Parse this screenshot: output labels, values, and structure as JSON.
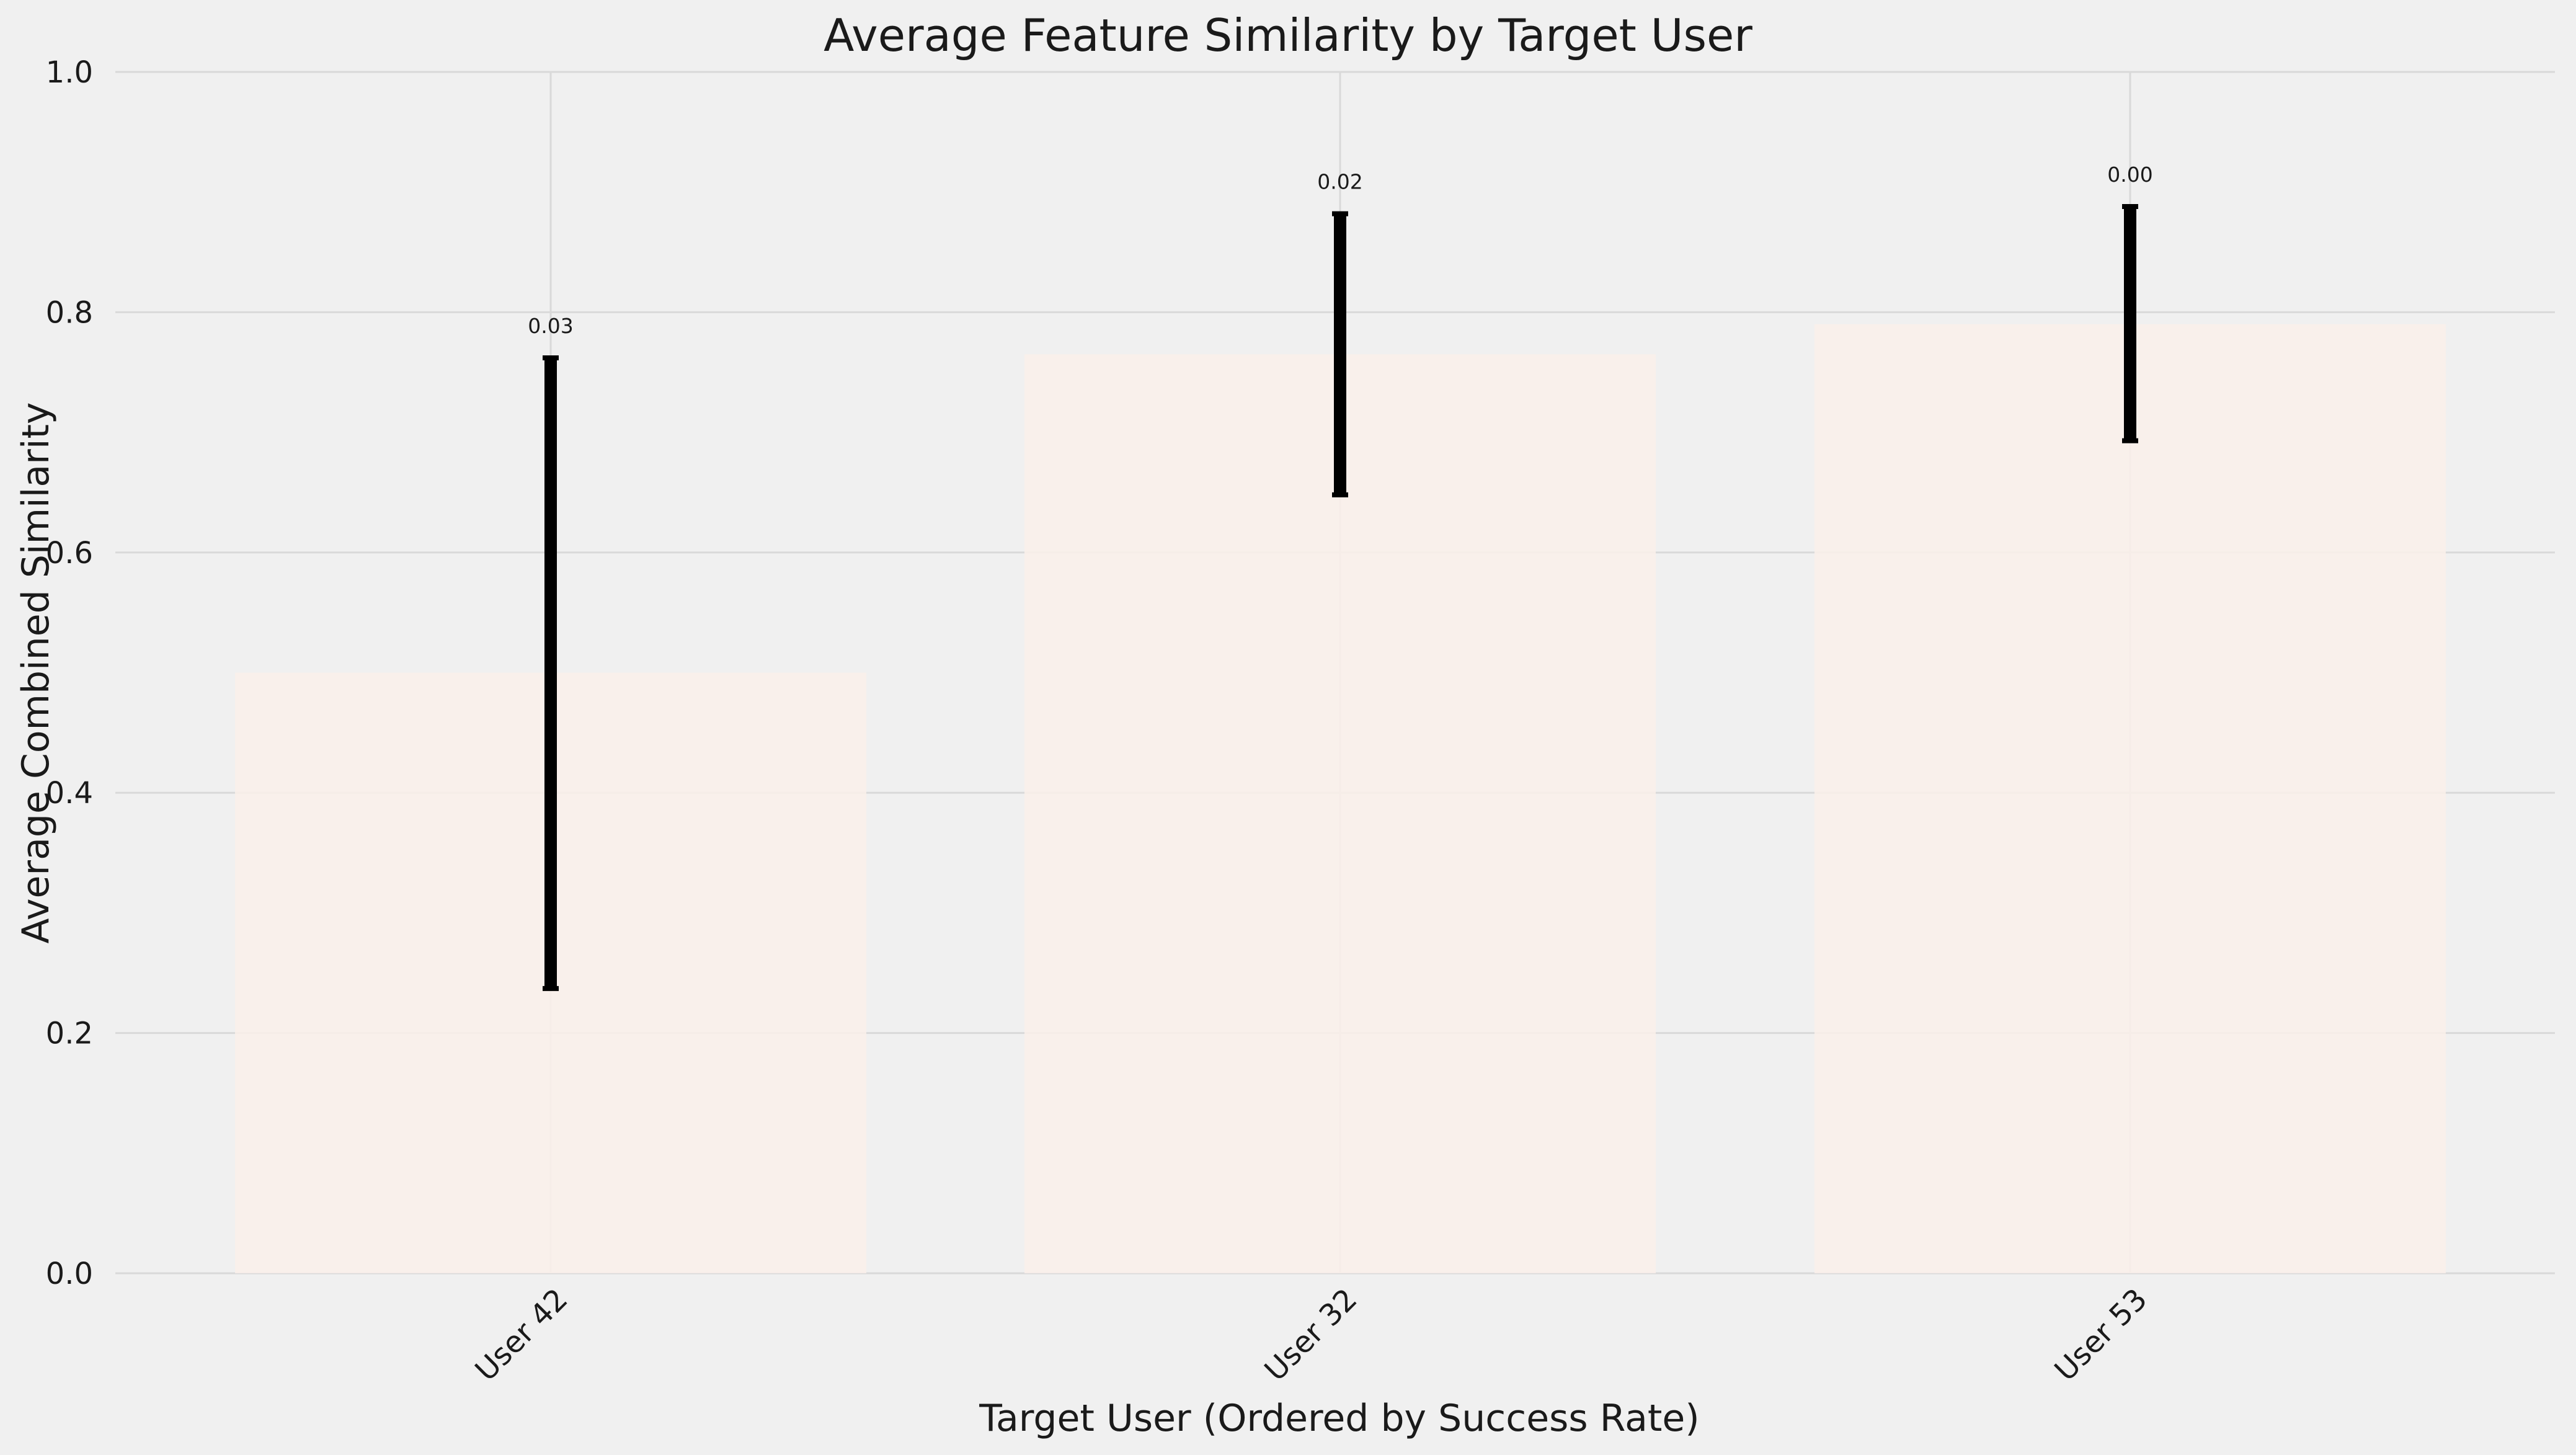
{
  "chart_data": {
    "type": "bar",
    "title": "Average Feature Similarity by Target User",
    "xlabel": "Target User (Ordered by Success Rate)",
    "ylabel": "Average Combined Similarity",
    "categories": [
      "User 42",
      "User 32",
      "User 53"
    ],
    "values": [
      0.5,
      0.765,
      0.79
    ],
    "error_low": [
      0.237,
      0.648,
      0.693
    ],
    "error_high": [
      0.762,
      0.882,
      0.888
    ],
    "data_labels": [
      "0.03",
      "0.02",
      "0.00"
    ],
    "ylim": [
      0,
      1.0
    ],
    "yticks": [
      0.0,
      0.2,
      0.4,
      0.6,
      0.8,
      1.0
    ],
    "ytick_labels": [
      "0.0",
      "0.2",
      "0.4",
      "0.6",
      "0.8",
      "1.0"
    ],
    "grid": true,
    "bar_color": "#faf0ea",
    "error_color": "#000000",
    "background_color": "#f0f0f0",
    "grid_color": "#d9d9d9"
  }
}
